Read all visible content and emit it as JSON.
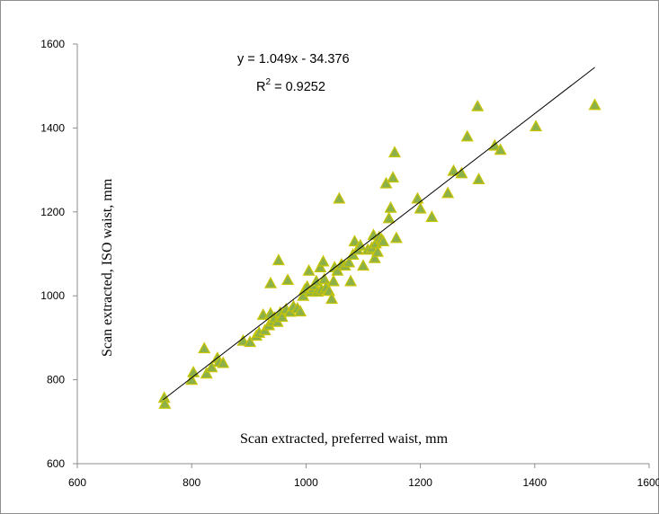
{
  "chart_data": {
    "type": "scatter",
    "title": "",
    "xlabel": "Scan extracted, preferred waist, mm",
    "ylabel": "Scan extracted, ISO waist, mm",
    "xlim": [
      600,
      1600
    ],
    "ylim": [
      600,
      1600
    ],
    "xticks": [
      "600",
      "800",
      "1000",
      "1200",
      "1400",
      "1600"
    ],
    "yticks": [
      "600",
      "800",
      "1000",
      "1200",
      "1400",
      "1600"
    ],
    "grid": false,
    "legend": "none",
    "marker": {
      "shape": "triangle",
      "fill": "#8db14a",
      "stroke": "#c8c400"
    },
    "trendline": {
      "equation": "y = 1.049x - 34.376",
      "r2_prefix": "R",
      "r2_superscript": "2",
      "r2_value": " = 0.9252",
      "slope": 1.049,
      "intercept": -34.376,
      "x_range": [
        750,
        1505
      ],
      "color": "#000000"
    },
    "points": [
      [
        752,
        757
      ],
      [
        753,
        743
      ],
      [
        800,
        800
      ],
      [
        803,
        818
      ],
      [
        822,
        875
      ],
      [
        826,
        815
      ],
      [
        835,
        830
      ],
      [
        845,
        852
      ],
      [
        848,
        843
      ],
      [
        855,
        840
      ],
      [
        890,
        893
      ],
      [
        902,
        890
      ],
      [
        913,
        905
      ],
      [
        918,
        912
      ],
      [
        925,
        955
      ],
      [
        928,
        918
      ],
      [
        935,
        930
      ],
      [
        938,
        958
      ],
      [
        938,
        1030
      ],
      [
        942,
        940
      ],
      [
        945,
        948
      ],
      [
        950,
        938
      ],
      [
        952,
        1085
      ],
      [
        955,
        960
      ],
      [
        958,
        950
      ],
      [
        965,
        968
      ],
      [
        968,
        1038
      ],
      [
        972,
        962
      ],
      [
        978,
        975
      ],
      [
        985,
        970
      ],
      [
        990,
        963
      ],
      [
        995,
        1000
      ],
      [
        998,
        1015
      ],
      [
        1002,
        1022
      ],
      [
        1005,
        1060
      ],
      [
        1008,
        1010
      ],
      [
        1012,
        1018
      ],
      [
        1015,
        1025
      ],
      [
        1018,
        1035
      ],
      [
        1020,
        1010
      ],
      [
        1025,
        1068
      ],
      [
        1027,
        1015
      ],
      [
        1030,
        1082
      ],
      [
        1032,
        1040
      ],
      [
        1035,
        1020
      ],
      [
        1040,
        1012
      ],
      [
        1045,
        993
      ],
      [
        1048,
        1035
      ],
      [
        1050,
        1068
      ],
      [
        1055,
        1060
      ],
      [
        1058,
        1232
      ],
      [
        1062,
        1075
      ],
      [
        1068,
        1072
      ],
      [
        1075,
        1080
      ],
      [
        1078,
        1035
      ],
      [
        1082,
        1098
      ],
      [
        1085,
        1130
      ],
      [
        1090,
        1110
      ],
      [
        1095,
        1120
      ],
      [
        1100,
        1072
      ],
      [
        1108,
        1110
      ],
      [
        1115,
        1115
      ],
      [
        1118,
        1145
      ],
      [
        1120,
        1090
      ],
      [
        1122,
        1125
      ],
      [
        1125,
        1105
      ],
      [
        1128,
        1140
      ],
      [
        1132,
        1135
      ],
      [
        1135,
        1130
      ],
      [
        1140,
        1268
      ],
      [
        1145,
        1185
      ],
      [
        1148,
        1210
      ],
      [
        1152,
        1282
      ],
      [
        1155,
        1342
      ],
      [
        1158,
        1138
      ],
      [
        1195,
        1232
      ],
      [
        1200,
        1208
      ],
      [
        1220,
        1188
      ],
      [
        1248,
        1245
      ],
      [
        1258,
        1298
      ],
      [
        1272,
        1292
      ],
      [
        1282,
        1380
      ],
      [
        1300,
        1452
      ],
      [
        1302,
        1278
      ],
      [
        1330,
        1358
      ],
      [
        1340,
        1348
      ],
      [
        1402,
        1404
      ],
      [
        1505,
        1455
      ]
    ]
  }
}
